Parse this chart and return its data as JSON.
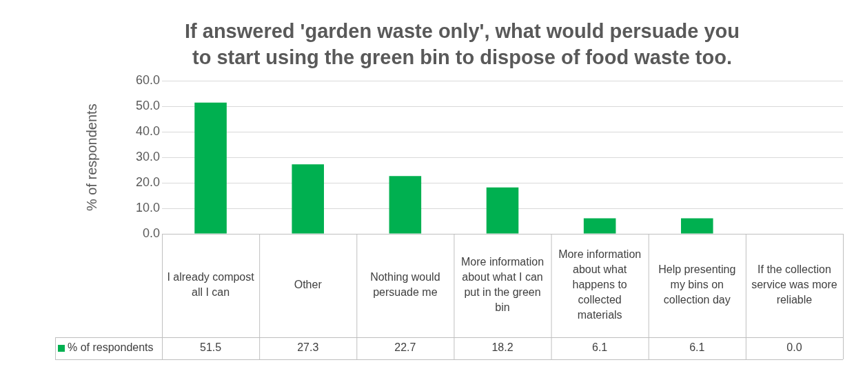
{
  "chart_data": {
    "type": "bar",
    "title": "If answered 'garden waste only', what would persuade you to start using the green bin to dispose of food waste too.",
    "ylabel": "% of respondents",
    "categories": [
      "I already compost all I can",
      "Other",
      "Nothing would persuade me",
      "More information about what I can put in the green bin",
      "More information about what happens to collected materials",
      "Help presenting my bins on collection day",
      "If the collection service was more reliable"
    ],
    "series": [
      {
        "name": "% of respondents",
        "color": "#00b050",
        "values": [
          51.5,
          27.3,
          22.7,
          18.2,
          6.1,
          6.1,
          0.0
        ],
        "value_labels": [
          "51.5",
          "27.3",
          "22.7",
          "18.2",
          "6.1",
          "6.1",
          "0.0"
        ]
      }
    ],
    "ylim": [
      0,
      60
    ],
    "yticks": [
      {
        "value": 0,
        "label": "0.0"
      },
      {
        "value": 10,
        "label": "10.0"
      },
      {
        "value": 20,
        "label": "20.0"
      },
      {
        "value": 30,
        "label": "30.0"
      },
      {
        "value": 40,
        "label": "40.0"
      },
      {
        "value": 50,
        "label": "50.0"
      },
      {
        "value": 60,
        "label": "60.0"
      }
    ],
    "grid": "y",
    "legend": "bottom"
  }
}
